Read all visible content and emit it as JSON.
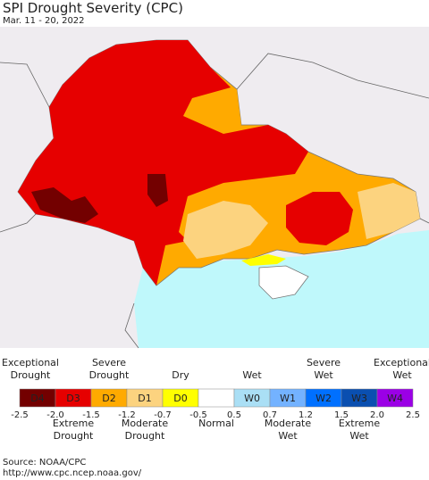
{
  "header": {
    "title": "SPI Drought Severity (CPC)",
    "subtitle": "Mar. 11 - 20, 2022"
  },
  "legend": {
    "items": [
      {
        "code": "D4",
        "color": "#730000",
        "label_position": "top",
        "label": [
          "Exceptional",
          "Drought"
        ]
      },
      {
        "code": "D3",
        "color": "#e60000",
        "label_position": "bottom",
        "label": [
          "Extreme",
          "Drought"
        ]
      },
      {
        "code": "D2",
        "color": "#ffaa00",
        "label_position": "top",
        "label": [
          "Severe",
          "Drought"
        ]
      },
      {
        "code": "D1",
        "color": "#fcd37f",
        "label_position": "bottom",
        "label": [
          "Moderate",
          "Drought"
        ]
      },
      {
        "code": "D0",
        "color": "#ffff00",
        "label_position": "top",
        "label": [
          "Dry"
        ]
      },
      {
        "color": "#ffffff",
        "label_position": "bottom",
        "label": [
          "Normal"
        ]
      },
      {
        "code": "W0",
        "color": "#aadff5",
        "label_position": "top",
        "label": [
          "Wet"
        ]
      },
      {
        "code": "W1",
        "color": "#73b2ff",
        "label_position": "bottom",
        "label": [
          "Moderate",
          "Wet"
        ]
      },
      {
        "code": "W2",
        "color": "#0070ff",
        "label_position": "top",
        "label": [
          "Severe",
          "Wet"
        ]
      },
      {
        "code": "W3",
        "color": "#0a4fb0",
        "label_position": "bottom",
        "label": [
          "Extreme",
          "Wet"
        ]
      },
      {
        "code": "W4",
        "color": "#9b00e6",
        "label_position": "top",
        "label": [
          "Exceptional",
          "Wet"
        ]
      }
    ],
    "ticks": [
      "-2.5",
      "-2.0",
      "-1.5",
      "-1.2",
      "-0.7",
      "-0.5",
      "0.5",
      "0.7",
      "1.2",
      "1.5",
      "2.0",
      "2.5"
    ]
  },
  "source": [
    "Source: NOAA/CPC",
    "http://www.cpc.ncep.noaa.gov/"
  ]
}
